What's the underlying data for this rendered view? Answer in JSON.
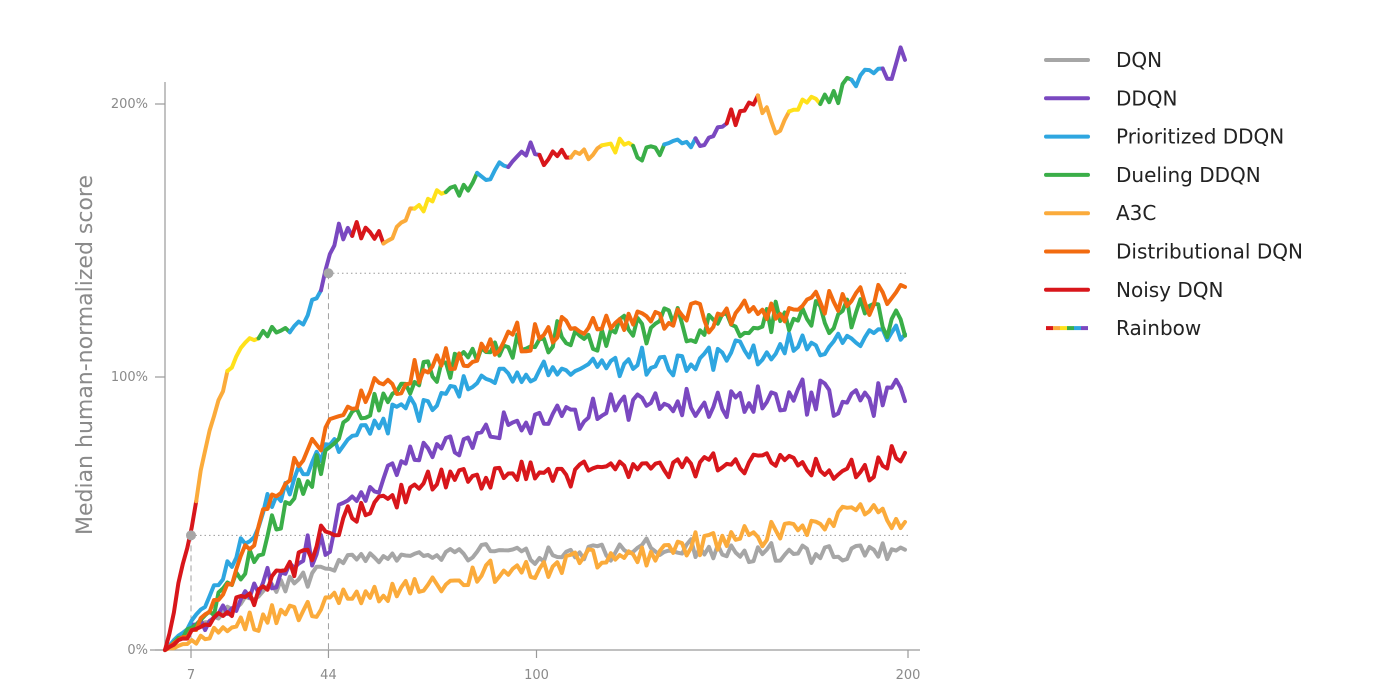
{
  "chart_data": {
    "type": "line",
    "title": "",
    "xlabel": "",
    "ylabel": "Median human-normalized score",
    "xlim": [
      0,
      200
    ],
    "ylim": [
      0,
      200
    ],
    "x_ticks": [
      7,
      44,
      100,
      200
    ],
    "x_tick_labels": [
      "7",
      "44",
      "100",
      "200"
    ],
    "y_ticks": [
      0,
      100,
      200
    ],
    "y_tick_labels": [
      "0%",
      "100%",
      "200%"
    ],
    "legend_position": "top-right",
    "reference_markers": [
      {
        "x": 7,
        "y": 42
      },
      {
        "x": 44,
        "y": 138
      }
    ],
    "series": [
      {
        "name": "DQN",
        "color": "#a6a6a6",
        "x": [
          0,
          7,
          14,
          21,
          28,
          35,
          44,
          50,
          60,
          70,
          80,
          90,
          100,
          110,
          120,
          130,
          140,
          150,
          160,
          170,
          180,
          190,
          200
        ],
        "y": [
          0,
          8,
          12,
          17,
          22,
          25,
          30,
          34,
          34,
          35,
          36,
          37,
          35,
          36,
          36,
          38,
          37,
          35,
          36,
          35,
          35,
          36,
          36
        ]
      },
      {
        "name": "DDQN",
        "color": "#7a48c0",
        "x": [
          0,
          7,
          14,
          21,
          28,
          35,
          44,
          50,
          60,
          70,
          80,
          90,
          100,
          110,
          120,
          130,
          140,
          150,
          160,
          170,
          180,
          190,
          200
        ],
        "y": [
          0,
          8,
          12,
          18,
          24,
          30,
          42,
          55,
          67,
          72,
          76,
          80,
          85,
          86,
          88,
          92,
          91,
          88,
          92,
          92,
          93,
          92,
          96
        ]
      },
      {
        "name": "Prioritized DDQN",
        "color": "#2ea6e0",
        "x": [
          0,
          7,
          14,
          21,
          28,
          35,
          44,
          50,
          60,
          70,
          80,
          90,
          100,
          110,
          120,
          130,
          140,
          150,
          160,
          170,
          180,
          190,
          200
        ],
        "y": [
          0,
          10,
          22,
          40,
          55,
          62,
          72,
          80,
          84,
          90,
          96,
          100,
          101,
          103,
          104,
          106,
          106,
          108,
          110,
          112,
          113,
          114,
          118
        ]
      },
      {
        "name": "Dueling DDQN",
        "color": "#3aae48",
        "x": [
          0,
          7,
          14,
          21,
          28,
          35,
          44,
          50,
          60,
          70,
          80,
          90,
          100,
          110,
          120,
          130,
          140,
          150,
          160,
          170,
          180,
          190,
          200
        ],
        "y": [
          0,
          8,
          18,
          30,
          42,
          55,
          70,
          85,
          92,
          102,
          108,
          110,
          112,
          114,
          116,
          118,
          118,
          120,
          120,
          121,
          121,
          122,
          120
        ]
      },
      {
        "name": "A3C",
        "color": "#fbab3b",
        "x": [
          0,
          7,
          14,
          21,
          28,
          35,
          44,
          50,
          60,
          70,
          80,
          90,
          100,
          110,
          120,
          130,
          140,
          150,
          160,
          170,
          180,
          190,
          200
        ],
        "y": [
          0,
          3,
          6,
          9,
          12,
          14,
          17,
          19,
          22,
          24,
          26,
          28,
          30,
          32,
          34,
          36,
          38,
          40,
          42,
          45,
          48,
          52,
          43
        ]
      },
      {
        "name": "Distributional DQN",
        "color": "#f26b10",
        "x": [
          0,
          7,
          14,
          21,
          28,
          35,
          44,
          50,
          60,
          70,
          80,
          90,
          100,
          110,
          120,
          130,
          140,
          150,
          160,
          170,
          180,
          190,
          200
        ],
        "y": [
          0,
          6,
          18,
          34,
          50,
          66,
          80,
          90,
          96,
          102,
          108,
          112,
          116,
          118,
          120,
          121,
          122,
          123,
          124,
          125,
          126,
          128,
          132
        ]
      },
      {
        "name": "Noisy DQN",
        "color": "#d8161b",
        "x": [
          0,
          7,
          14,
          21,
          28,
          35,
          44,
          50,
          60,
          70,
          80,
          90,
          100,
          110,
          120,
          130,
          140,
          150,
          160,
          170,
          180,
          190,
          200
        ],
        "y": [
          0,
          6,
          12,
          18,
          24,
          30,
          44,
          50,
          56,
          60,
          63,
          64,
          64,
          65,
          66,
          67,
          68,
          69,
          70,
          68,
          66,
          66,
          74
        ]
      },
      {
        "name": "Rainbow",
        "color": "multi",
        "colors": [
          "#d8161b",
          "#fbab3b",
          "#ffe11a",
          "#3aae48",
          "#2ea6e0",
          "#7a48c0"
        ],
        "x": [
          0,
          2,
          4,
          7,
          10,
          14,
          18,
          22,
          27,
          32,
          37,
          40,
          42,
          44,
          46,
          50,
          55,
          60,
          65,
          70,
          75,
          80,
          85,
          90,
          95,
          100,
          105,
          110,
          115,
          120,
          125,
          130,
          135,
          140,
          145,
          150,
          155,
          160,
          165,
          170,
          175,
          180,
          185,
          190,
          195,
          200
        ],
        "y": [
          0,
          10,
          28,
          42,
          70,
          90,
          105,
          114,
          116,
          117,
          120,
          128,
          134,
          140,
          152,
          154,
          150,
          152,
          156,
          164,
          168,
          170,
          172,
          176,
          180,
          182,
          181,
          182,
          181,
          184,
          184,
          183,
          185,
          186,
          188,
          193,
          198,
          200,
          192,
          197,
          201,
          204,
          208,
          212,
          210,
          222
        ]
      }
    ]
  },
  "legend": {
    "items": [
      "DQN",
      "DDQN",
      "Prioritized DDQN",
      "Dueling DDQN",
      "A3C",
      "Distributional DQN",
      "Noisy DQN",
      "Rainbow"
    ]
  }
}
